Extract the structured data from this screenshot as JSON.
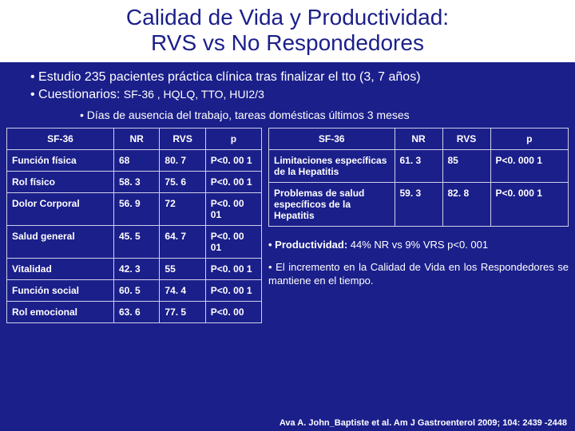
{
  "title_line1": "Calidad de Vida y Productividad:",
  "title_line2": "RVS vs No Respondedores",
  "bullet1": "Estudio 235 pacientes práctica clínica tras finalizar el tto (3, 7 años)",
  "bullet2_lead": "Cuestionarios: ",
  "bullet2_small": "SF-36 , HQLQ, TTO, HUI2/3",
  "sub_bullet": "Días de ausencia del trabajo, tareas domésticas últimos 3 meses",
  "left_table": {
    "headers": [
      "SF-36",
      "NR",
      "RVS",
      "p"
    ],
    "rows": [
      [
        "Función física",
        "68",
        "80. 7",
        "P<0. 00 1"
      ],
      [
        "Rol físico",
        "58. 3",
        "75. 6",
        "P<0. 00 1"
      ],
      [
        "Dolor Corporal",
        "56. 9",
        "72",
        "P<0. 00 01"
      ],
      [
        "Salud general",
        "45. 5",
        "64. 7",
        "P<0. 00 01"
      ],
      [
        "Vitalidad",
        "42. 3",
        "55",
        "P<0. 00 1"
      ],
      [
        "Función social",
        "60. 5",
        "74. 4",
        "P<0. 00 1"
      ],
      [
        "Rol emocional",
        "63. 6",
        "77. 5",
        "P<0. 00"
      ]
    ]
  },
  "right_table": {
    "headers": [
      "SF-36",
      "NR",
      "RVS",
      "p"
    ],
    "rows": [
      [
        "Limitaciones específicas de la Hepatitis",
        "61. 3",
        "85",
        "P<0. 000 1"
      ],
      [
        "Problemas de salud específicos de la Hepatitis",
        "59. 3",
        "82. 8",
        "P<0. 000 1"
      ]
    ]
  },
  "prod_label": "• Productividad:",
  "prod_rest": " 44% NR vs 9% VRS p<0. 001",
  "note2": "•  El incremento en la Calidad de Vida en los Respondedores se mantiene en el tiempo.",
  "citation": "Ava A. John_Baptiste et al. Am J Gastroenterol 2009; 104: 2439 -2448"
}
